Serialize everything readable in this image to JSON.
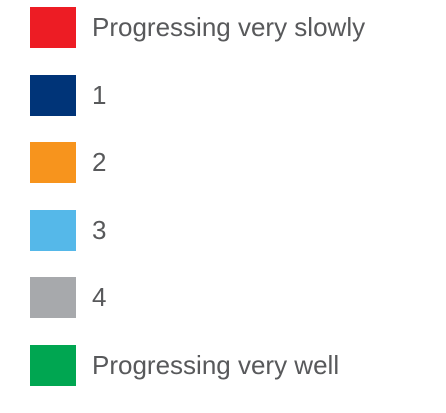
{
  "chart_data": {
    "type": "legend",
    "legend": [
      {
        "label": "Progressing very slowly",
        "color": "#ed1c24"
      },
      {
        "label": "1",
        "color": "#003478"
      },
      {
        "label": "2",
        "color": "#f7941d"
      },
      {
        "label": "3",
        "color": "#55b8e9"
      },
      {
        "label": "4",
        "color": "#a7a9ac"
      },
      {
        "label": "Progressing very well",
        "color": "#00a651"
      }
    ]
  }
}
